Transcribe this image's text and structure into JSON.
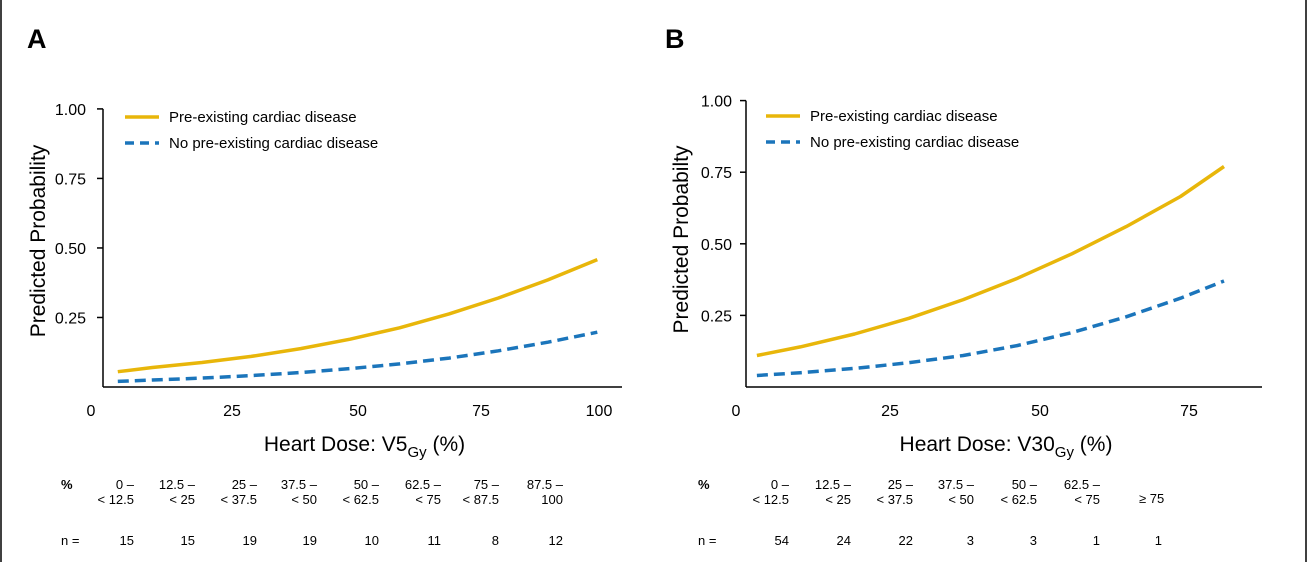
{
  "chart_data": [
    {
      "panel_label": "A",
      "type": "line",
      "xlabel_parts": {
        "main": "Heart Dose: V5",
        "sub": "Gy",
        "tail": " (%)"
      },
      "ylabel": "Predicted Probability",
      "xlim": [
        0,
        105
      ],
      "ylim": [
        0,
        1.05
      ],
      "x_ticks": [
        "0",
        "25",
        "50",
        "75",
        "100"
      ],
      "y_ticks": [
        "0.25",
        "0.50",
        "0.75",
        "1.00"
      ],
      "legend_position": "top-left",
      "series": [
        {
          "name": "Pre-existing cardiac disease",
          "style": "solid",
          "color": "#E8B60A",
          "x": [
            3,
            10,
            20,
            30,
            40,
            50,
            60,
            70,
            80,
            90,
            100
          ],
          "y": [
            0.055,
            0.07,
            0.088,
            0.11,
            0.138,
            0.172,
            0.213,
            0.263,
            0.32,
            0.385,
            0.458
          ]
        },
        {
          "name": "No pre-existing cardiac disease",
          "style": "dashed",
          "color": "#1B75BB",
          "x": [
            3,
            10,
            20,
            30,
            40,
            50,
            60,
            70,
            80,
            90,
            100
          ],
          "y": [
            0.02,
            0.025,
            0.032,
            0.041,
            0.052,
            0.066,
            0.083,
            0.104,
            0.13,
            0.161,
            0.197
          ]
        }
      ],
      "table": {
        "header_label": "%",
        "ranges": [
          [
            "0 –",
            "< 12.5"
          ],
          [
            "12.5 –",
            "< 25"
          ],
          [
            "25 –",
            "< 37.5"
          ],
          [
            "37.5 –",
            "< 50"
          ],
          [
            "50 –",
            "< 62.5"
          ],
          [
            "62.5 –",
            "< 75"
          ],
          [
            "75 –",
            "< 87.5"
          ],
          [
            "87.5 –",
            "100"
          ]
        ],
        "n_label": "n =",
        "counts": [
          "15",
          "15",
          "19",
          "19",
          "10",
          "11",
          "8",
          "12"
        ]
      }
    },
    {
      "panel_label": "B",
      "type": "line",
      "xlabel_parts": {
        "main": "Heart Dose: V30",
        "sub": "Gy",
        "tail": " (%)"
      },
      "ylabel": "Predicted Probabilty",
      "xlim": [
        0,
        95
      ],
      "ylim": [
        0,
        1.03
      ],
      "x_ticks": [
        "0",
        "25",
        "50",
        "75"
      ],
      "y_ticks": [
        "0.25",
        "0.50",
        "0.75",
        "1.00"
      ],
      "legend_position": "top-left",
      "series": [
        {
          "name": "Pre-existing cardiac disease",
          "style": "solid",
          "color": "#E8B60A",
          "x": [
            2,
            10,
            20,
            30,
            40,
            50,
            60,
            70,
            80,
            88
          ],
          "y": [
            0.11,
            0.14,
            0.185,
            0.24,
            0.305,
            0.38,
            0.465,
            0.56,
            0.665,
            0.77
          ]
        },
        {
          "name": "No pre-existing cardiac disease",
          "style": "dashed",
          "color": "#1B75BB",
          "x": [
            2,
            10,
            20,
            30,
            40,
            50,
            60,
            70,
            80,
            88
          ],
          "y": [
            0.04,
            0.05,
            0.065,
            0.085,
            0.11,
            0.145,
            0.19,
            0.245,
            0.31,
            0.37
          ]
        }
      ],
      "table": {
        "header_label": "%",
        "ranges": [
          [
            "0 –",
            "< 12.5"
          ],
          [
            "12.5 –",
            "< 25"
          ],
          [
            "25 –",
            "< 37.5"
          ],
          [
            "37.5 –",
            "< 50"
          ],
          [
            "50 –",
            "< 62.5"
          ],
          [
            "62.5 –",
            "< 75"
          ],
          [
            "",
            "≥ 75"
          ]
        ],
        "n_label": "n =",
        "counts": [
          "54",
          "24",
          "22",
          "3",
          "3",
          "1",
          "1"
        ]
      }
    }
  ]
}
